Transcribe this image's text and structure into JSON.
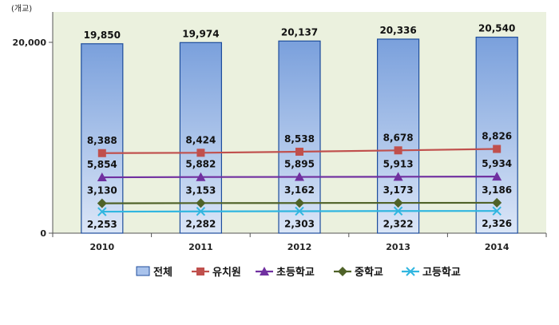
{
  "chart_data": {
    "type": "bar",
    "unit_label": "(개교)",
    "categories": [
      "2010",
      "2011",
      "2012",
      "2013",
      "2014"
    ],
    "ylim": [
      0,
      20000
    ],
    "yticks": [
      "0",
      "20,000"
    ],
    "grid": false,
    "legend_position": "bottom",
    "series": [
      {
        "name": "전체",
        "kind": "bar",
        "color": "#9bb9e8",
        "values": [
          19850,
          19974,
          20137,
          20336,
          20540
        ],
        "labels": [
          "19,850",
          "19,974",
          "20,137",
          "20,336",
          "20,540"
        ],
        "marker": "rect"
      },
      {
        "name": "유치원",
        "kind": "line",
        "color": "#c0504d",
        "values": [
          8388,
          8424,
          8538,
          8678,
          8826
        ],
        "labels": [
          "8,388",
          "8,424",
          "8,538",
          "8,678",
          "8,826"
        ],
        "marker": "square"
      },
      {
        "name": "초등학교",
        "kind": "line",
        "color": "#7030a0",
        "values": [
          5854,
          5882,
          5895,
          5913,
          5934
        ],
        "labels": [
          "5,854",
          "5,882",
          "5,895",
          "5,913",
          "5,934"
        ],
        "marker": "triangle"
      },
      {
        "name": "중학교",
        "kind": "line",
        "color": "#4f6228",
        "values": [
          3130,
          3153,
          3162,
          3173,
          3186
        ],
        "labels": [
          "3,130",
          "3,153",
          "3,162",
          "3,173",
          "3,186"
        ],
        "marker": "diamond"
      },
      {
        "name": "고등학교",
        "kind": "line",
        "color": "#31b6e0",
        "values": [
          2253,
          2282,
          2303,
          2322,
          2326
        ],
        "labels": [
          "2,253",
          "2,282",
          "2,303",
          "2,322",
          "2,326"
        ],
        "marker": "x"
      }
    ]
  }
}
